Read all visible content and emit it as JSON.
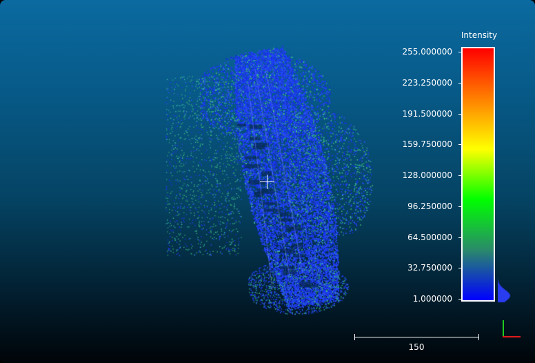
{
  "scalar_bar": {
    "title": "Intensity",
    "ticks": [
      "255.000000",
      "223.250000",
      "191.500000",
      "159.750000",
      "128.000000",
      "96.250000",
      "64.500000",
      "32.750000",
      "1.000000"
    ],
    "colors": [
      "#ff0000",
      "#ff8000",
      "#ffff00",
      "#00ff00",
      "#2a8a6a",
      "#0000ff"
    ]
  },
  "scale": {
    "label": "150"
  },
  "axes": {
    "x_color": "#e01b1b",
    "y_color": "#1fcc1f"
  },
  "cloud": {
    "dominant_color": "#1a3cf0",
    "secondary_color": "#2fa070"
  }
}
